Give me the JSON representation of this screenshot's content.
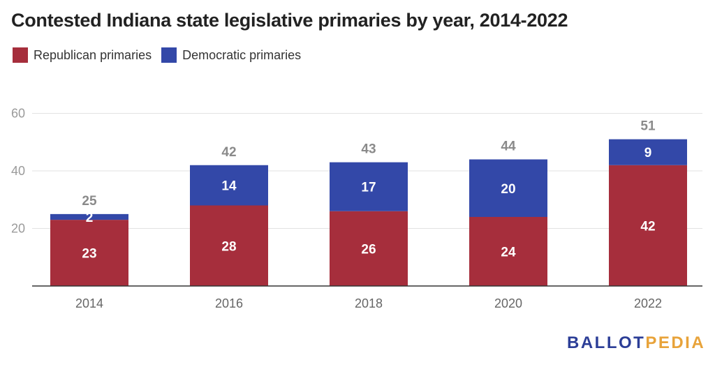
{
  "chart_data": {
    "type": "bar",
    "stacked": true,
    "title": "Contested Indiana state legislative primaries by year, 2014-2022",
    "categories": [
      "2014",
      "2016",
      "2018",
      "2020",
      "2022"
    ],
    "series": [
      {
        "name": "Republican primaries",
        "color": "#a62e3c",
        "values": [
          23,
          28,
          26,
          24,
          42
        ]
      },
      {
        "name": "Democratic primaries",
        "color": "#3348a8",
        "values": [
          2,
          14,
          17,
          20,
          9
        ]
      }
    ],
    "totals": [
      25,
      42,
      43,
      44,
      51
    ],
    "yticks": [
      20,
      40,
      60
    ],
    "ylim": [
      0,
      60
    ],
    "grid": true,
    "legend_position": "top-left"
  },
  "brand": {
    "part1": "BALLOT",
    "part2": "PEDIA"
  }
}
